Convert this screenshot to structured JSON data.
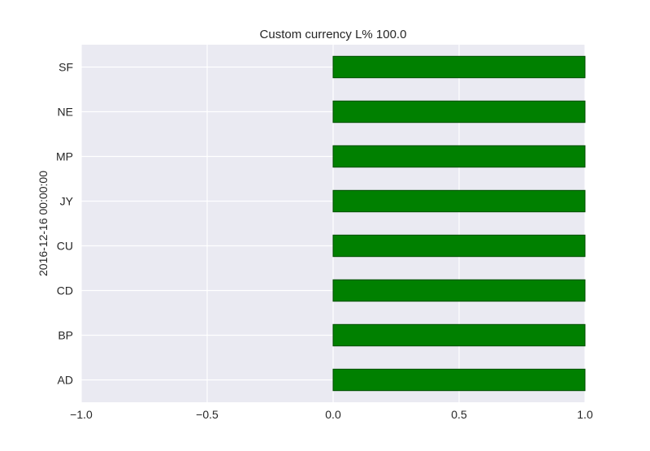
{
  "chart_data": {
    "type": "bar",
    "orientation": "horizontal",
    "title": "Custom currency L% 100.0",
    "xlabel": "",
    "ylabel": "2016-12-16 00:00:00",
    "categories": [
      "SF",
      "NE",
      "MP",
      "JY",
      "CU",
      "CD",
      "BP",
      "AD"
    ],
    "values": [
      1.0,
      1.0,
      1.0,
      1.0,
      1.0,
      1.0,
      1.0,
      1.0
    ],
    "xlim": [
      -1.0,
      1.0
    ],
    "xticks": [
      -1.0,
      -0.5,
      0.0,
      0.5,
      1.0
    ],
    "xtick_labels": [
      "−1.0",
      "−0.5",
      "0.0",
      "0.5",
      "1.0"
    ],
    "grid": true,
    "colors": {
      "bar": "#008000",
      "bar_edge": "#004d00",
      "plot_background": "#eaeaf2",
      "grid": "#ffffff"
    }
  }
}
